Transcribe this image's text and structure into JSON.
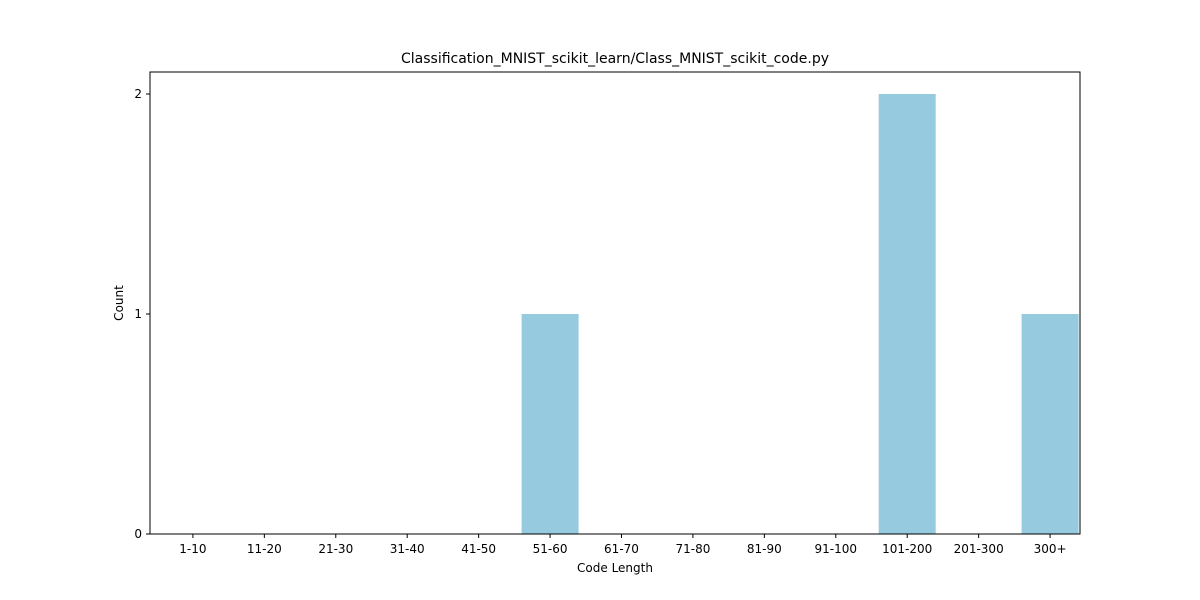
{
  "chart_data": {
    "type": "bar",
    "title": "Classification_MNIST_scikit_learn/Class_MNIST_scikit_code.py",
    "xlabel": "Code Length",
    "ylabel": "Count",
    "categories": [
      "1-10",
      "11-20",
      "21-30",
      "31-40",
      "41-50",
      "51-60",
      "61-70",
      "71-80",
      "81-90",
      "91-100",
      "101-200",
      "201-300",
      "300+"
    ],
    "values": [
      0,
      0,
      0,
      0,
      0,
      1,
      0,
      0,
      0,
      0,
      2,
      0,
      1
    ],
    "ylim": [
      0,
      2.1
    ],
    "yticks": [
      0,
      1,
      2
    ],
    "bar_color": "#96cade",
    "grid": false,
    "legend": "none"
  }
}
